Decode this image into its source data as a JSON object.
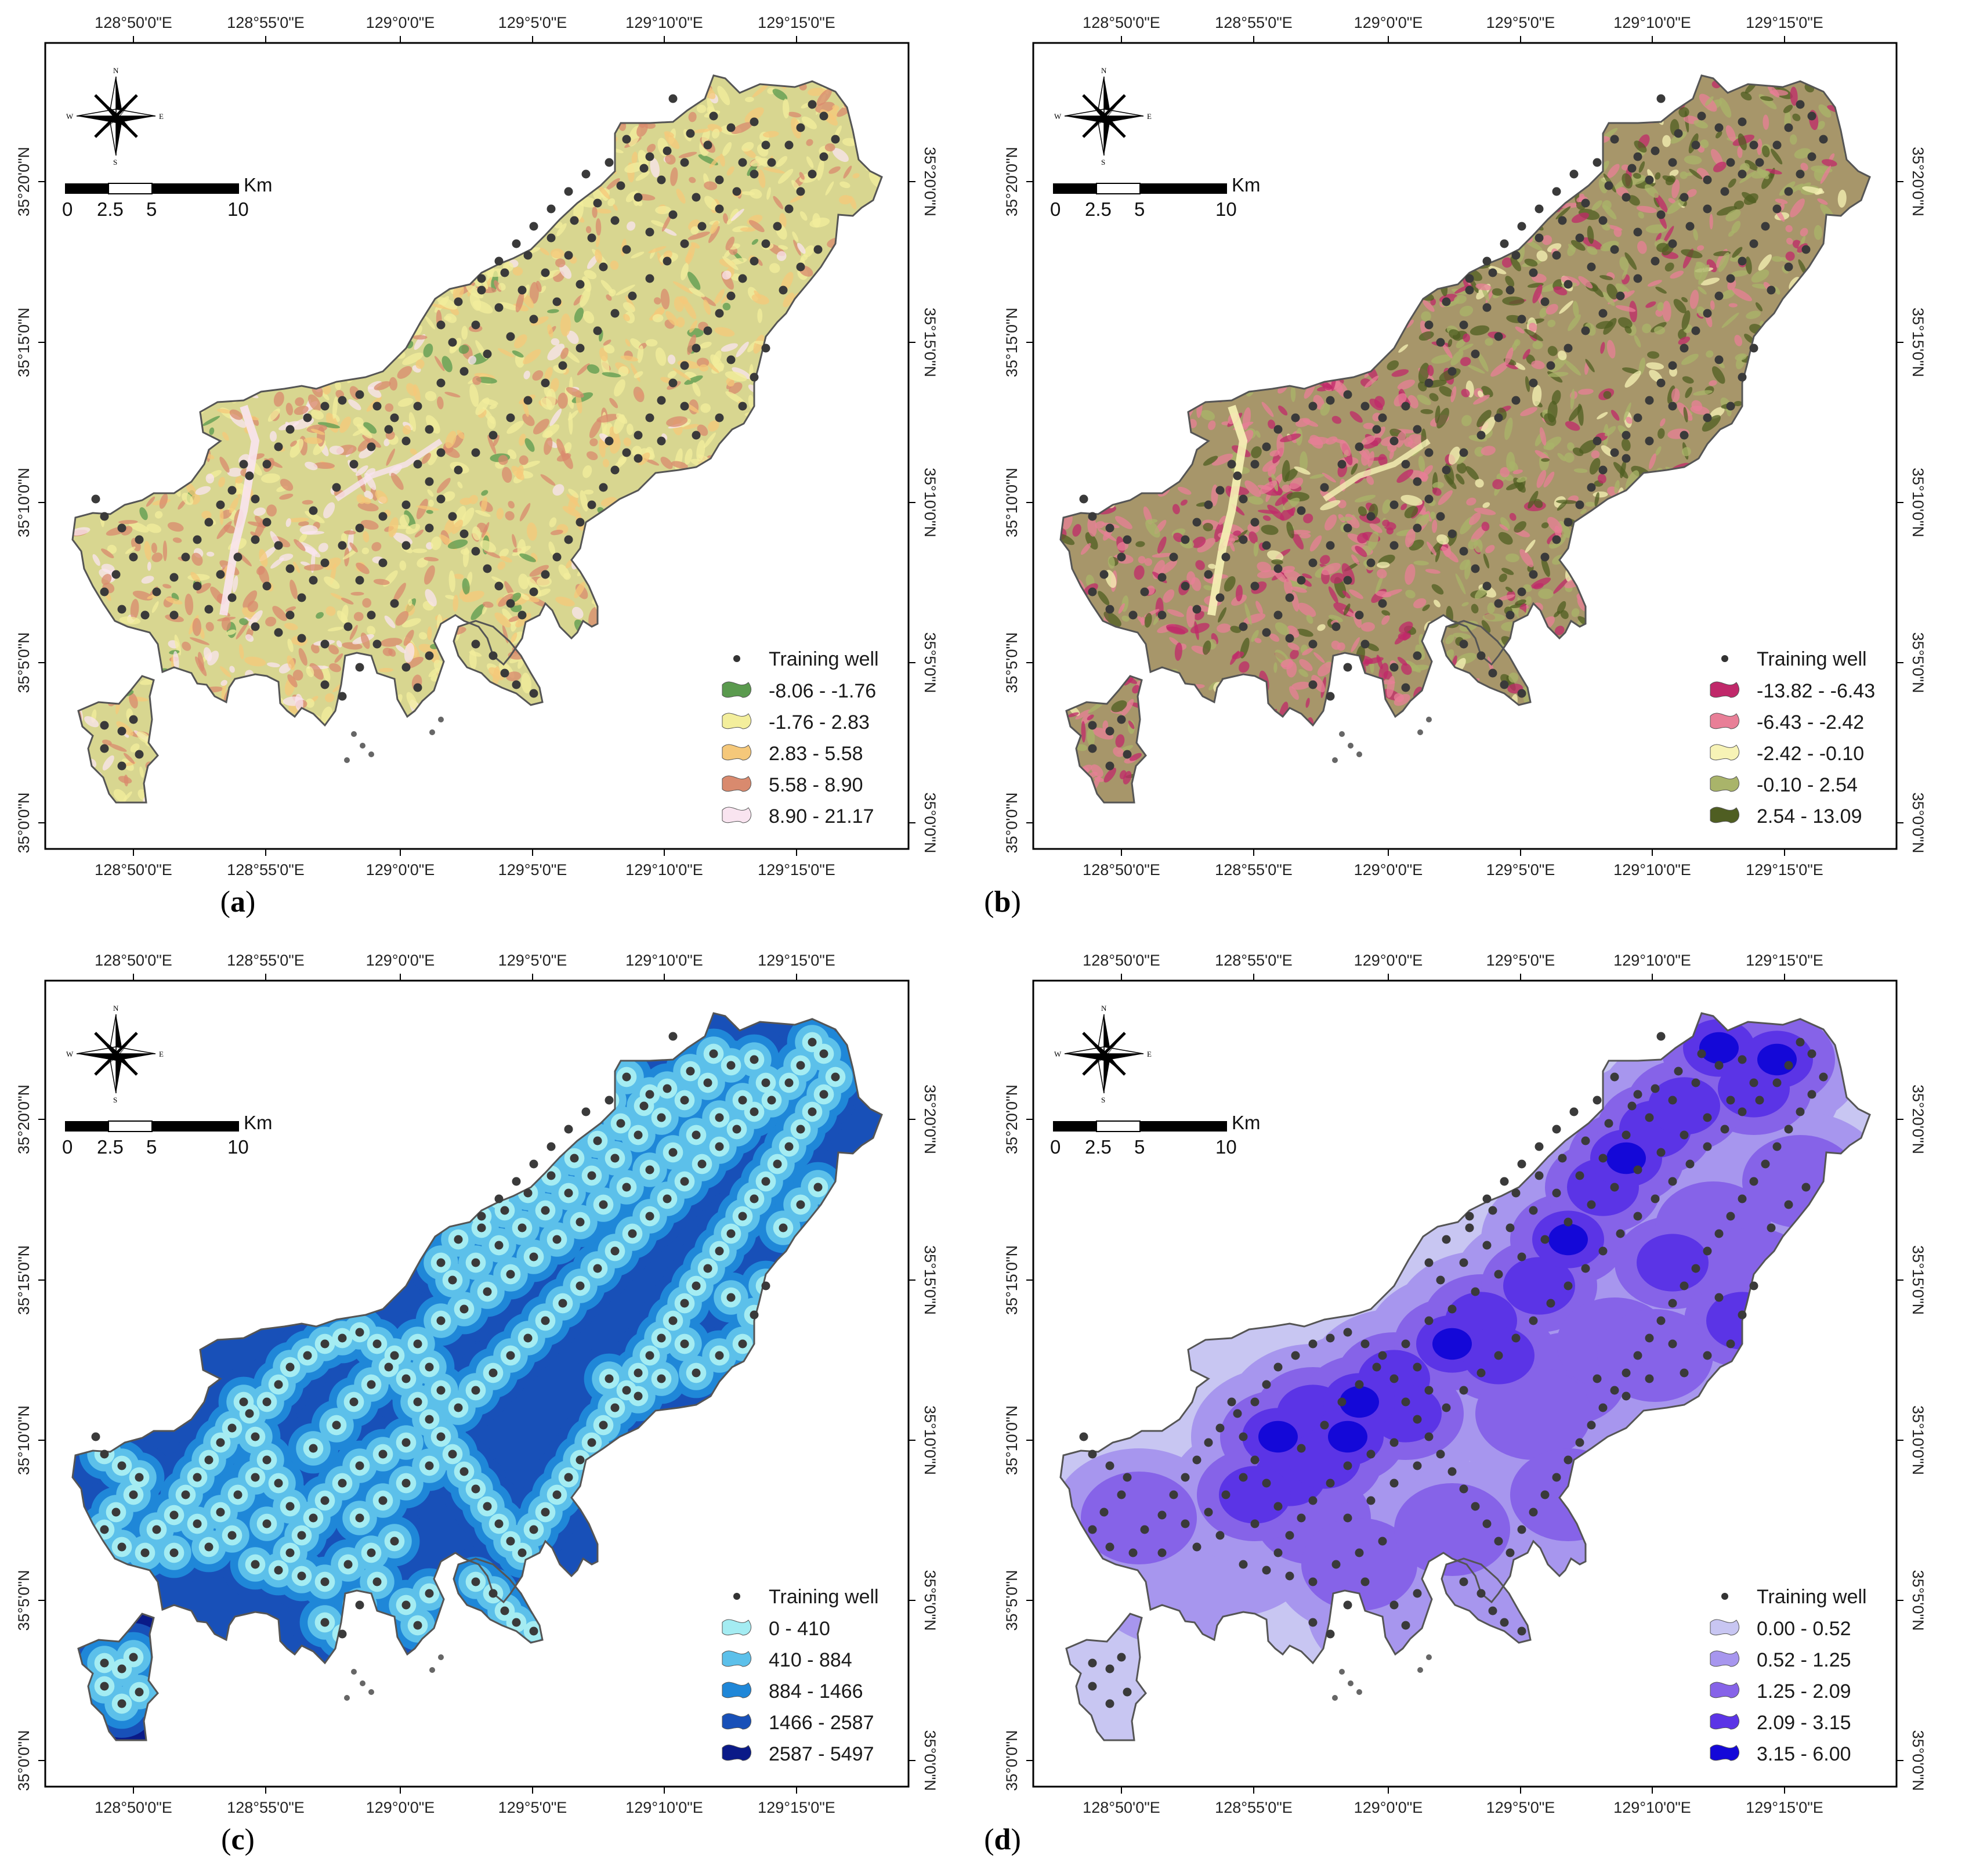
{
  "top_lon_labels": [
    "128°50'0\"E",
    "128°55'0\"E",
    "129°0'0\"E",
    "129°5'0\"E",
    "129°10'0\"E",
    "129°15'0\"E"
  ],
  "bottom_lon_labels": [
    "128°50'0\"E",
    "128°55'0\"E",
    "129°0'0\"E",
    "129°5'0\"E",
    "129°10'0\"E",
    "129°15'0\"E"
  ],
  "lat_labels": [
    "35°20'0\"N",
    "35°15'0\"N",
    "35°10'0\"N",
    "35°5'0\"N",
    "35°0'0\"N"
  ],
  "compass": {
    "n": "N",
    "s": "S",
    "e": "E",
    "w": "W"
  },
  "scale_bar": {
    "unit": "Km",
    "ticks": [
      "0",
      "2.5",
      "5",
      "10"
    ]
  },
  "legend_point_label": "Training well",
  "panels": [
    {
      "id": "a",
      "caption_letter": "a",
      "base_color": "#d8d690",
      "classes": [
        {
          "label": "-8.06 - -1.76",
          "color": "#5a9a4e"
        },
        {
          "label": "-1.76 - 2.83",
          "color": "#f3ee9c"
        },
        {
          "label": "2.83 - 5.58",
          "color": "#f5c87a"
        },
        {
          "label": "5.58 - 8.90",
          "color": "#d98a6e"
        },
        {
          "label": "8.90 - 21.17",
          "color": "#f9e4f0"
        }
      ]
    },
    {
      "id": "b",
      "caption_letter": "b",
      "base_color": "#a7966a",
      "classes": [
        {
          "label": "-13.82 - -6.43",
          "color": "#c0286a"
        },
        {
          "label": "-6.43 - -2.42",
          "color": "#e87f97"
        },
        {
          "label": "-2.42 - -0.10",
          "color": "#f7f3b6"
        },
        {
          "label": "-0.10 - 2.54",
          "color": "#a9b46a"
        },
        {
          "label": "2.54 - 13.09",
          "color": "#4f5e22"
        }
      ]
    },
    {
      "id": "c",
      "caption_letter": "c",
      "base_color": "#2f9ee0",
      "classes": [
        {
          "label": "0 - 410",
          "color": "#a4ecf2"
        },
        {
          "label": "410 - 884",
          "color": "#5cc0ea"
        },
        {
          "label": "884 - 1466",
          "color": "#1f87d8"
        },
        {
          "label": "1466 - 2587",
          "color": "#1850b8"
        },
        {
          "label": "2587 - 5497",
          "color": "#0a1a88"
        }
      ]
    },
    {
      "id": "d",
      "caption_letter": "d",
      "base_color": "#c8c6f2",
      "classes": [
        {
          "label": "0.00 - 0.52",
          "color": "#c8c6f2"
        },
        {
          "label": "0.52 - 1.25",
          "color": "#a796ee"
        },
        {
          "label": "1.25 - 2.09",
          "color": "#8663e8"
        },
        {
          "label": "2.09 - 3.15",
          "color": "#5b34e6"
        },
        {
          "label": "3.15 - 6.00",
          "color": "#1408d8"
        }
      ]
    }
  ]
}
